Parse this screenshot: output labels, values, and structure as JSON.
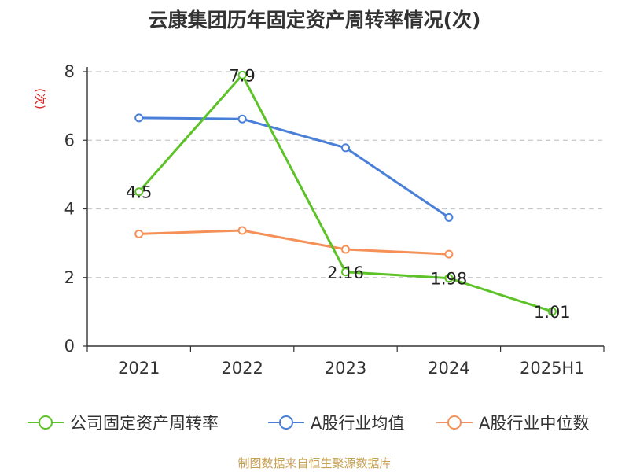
{
  "chart_data": {
    "type": "line",
    "title": "云康集团历年固定资产周转率情况(次)",
    "ylabel": "(次)",
    "xlabel": "",
    "ylim": [
      0,
      8
    ],
    "yticks": [
      0,
      2,
      4,
      6,
      8
    ],
    "grid": true,
    "categories": [
      "2021",
      "2022",
      "2023",
      "2024",
      "2025H1"
    ],
    "series": [
      {
        "name": "公司固定资产周转率",
        "color": "#5cc227",
        "values": [
          4.5,
          7.9,
          2.16,
          1.98,
          1.01
        ],
        "labels": [
          "4.5",
          "7.9",
          "2.16",
          "1.98",
          "1.01"
        ]
      },
      {
        "name": "A股行业均值",
        "color": "#4a7fd8",
        "values": [
          6.65,
          6.62,
          5.78,
          3.75,
          null
        ]
      },
      {
        "name": "A股行业中位数",
        "color": "#f59158",
        "values": [
          3.27,
          3.37,
          2.82,
          2.68,
          null
        ]
      }
    ],
    "legend_position": "bottom",
    "source": "制图数据来自恒生聚源数据库"
  }
}
